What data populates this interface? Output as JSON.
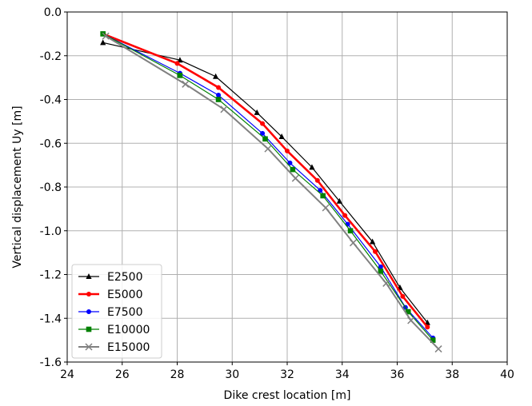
{
  "chart_data": {
    "type": "line",
    "xlabel": "Dike crest location [m]",
    "ylabel": "Vertical displacement Uy [m]",
    "xlim": [
      24,
      40
    ],
    "ylim": [
      -1.6,
      0.0
    ],
    "x_ticks": [
      "24",
      "26",
      "28",
      "30",
      "32",
      "34",
      "36",
      "38",
      "40"
    ],
    "y_ticks": [
      "0.0",
      "-0.2",
      "-0.4",
      "-0.6",
      "-0.8",
      "-1.0",
      "-1.2",
      "-1.4",
      "-1.6"
    ],
    "grid": true,
    "legend_position": "lower-left",
    "series": [
      {
        "name": "E2500",
        "color": "#000000",
        "marker": "triangle",
        "x": [
          25.3,
          28.1,
          29.4,
          30.9,
          31.8,
          32.9,
          33.9,
          35.1,
          36.1,
          37.1
        ],
        "y": [
          -0.14,
          -0.22,
          -0.295,
          -0.46,
          -0.57,
          -0.71,
          -0.865,
          -1.05,
          -1.26,
          -1.42
        ]
      },
      {
        "name": "E5000",
        "color": "#ff0000",
        "marker": "circle",
        "x": [
          25.3,
          28.0,
          29.5,
          31.1,
          32.0,
          33.1,
          34.1,
          35.2,
          36.2,
          37.1
        ],
        "y": [
          -0.1,
          -0.235,
          -0.345,
          -0.51,
          -0.635,
          -0.77,
          -0.93,
          -1.095,
          -1.3,
          -1.44
        ]
      },
      {
        "name": "E7500",
        "color": "#0000ff",
        "marker": "circle",
        "x": [
          25.3,
          28.1,
          29.5,
          31.1,
          32.1,
          33.2,
          34.2,
          35.4,
          36.3,
          37.3
        ],
        "y": [
          -0.1,
          -0.28,
          -0.38,
          -0.555,
          -0.69,
          -0.815,
          -0.97,
          -1.165,
          -1.35,
          -1.49
        ]
      },
      {
        "name": "E10000",
        "color": "#008000",
        "marker": "square",
        "x": [
          25.3,
          28.1,
          29.5,
          31.2,
          32.2,
          33.3,
          34.3,
          35.4,
          36.4,
          37.3
        ],
        "y": [
          -0.1,
          -0.29,
          -0.4,
          -0.58,
          -0.72,
          -0.84,
          -1.0,
          -1.185,
          -1.37,
          -1.5
        ]
      },
      {
        "name": "E15000",
        "color": "#808080",
        "marker": "x",
        "x": [
          25.4,
          28.3,
          29.7,
          31.3,
          32.3,
          33.4,
          34.4,
          35.6,
          36.5,
          37.5
        ],
        "y": [
          -0.11,
          -0.33,
          -0.445,
          -0.625,
          -0.76,
          -0.895,
          -1.055,
          -1.24,
          -1.41,
          -1.54
        ]
      }
    ]
  }
}
